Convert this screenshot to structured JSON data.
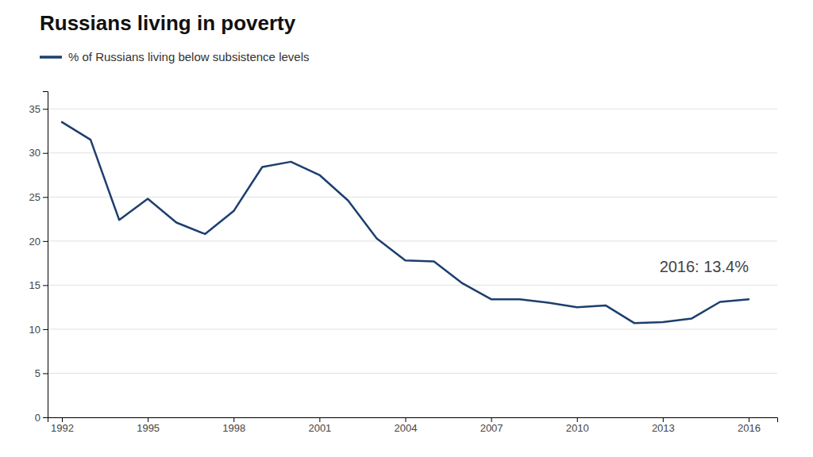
{
  "chart_data": {
    "type": "line",
    "title": "Russians living in poverty",
    "x": [
      1992,
      1993,
      1994,
      1995,
      1996,
      1997,
      1998,
      1999,
      2000,
      2001,
      2002,
      2003,
      2004,
      2005,
      2006,
      2007,
      2008,
      2009,
      2010,
      2011,
      2012,
      2013,
      2014,
      2015,
      2016
    ],
    "series": [
      {
        "name": "% of Russians living below subsistence levels",
        "color": "#1c3f6e",
        "values": [
          33.5,
          31.5,
          22.4,
          24.8,
          22.1,
          20.8,
          23.4,
          28.4,
          29.0,
          27.5,
          24.6,
          20.3,
          17.8,
          17.7,
          15.2,
          13.4,
          13.4,
          13.0,
          12.5,
          12.7,
          10.7,
          10.8,
          11.2,
          13.1,
          13.4
        ]
      }
    ],
    "xlim": [
      1991.5,
      2017.0
    ],
    "ylim": [
      0,
      37
    ],
    "xticks": [
      1992,
      1995,
      1998,
      2001,
      2004,
      2007,
      2010,
      2013,
      2016
    ],
    "yticks": [
      0,
      5,
      10,
      15,
      20,
      25,
      30,
      35
    ],
    "annotations": [
      "2016: 13.4%"
    ],
    "grid": true,
    "legend": "top-left"
  }
}
